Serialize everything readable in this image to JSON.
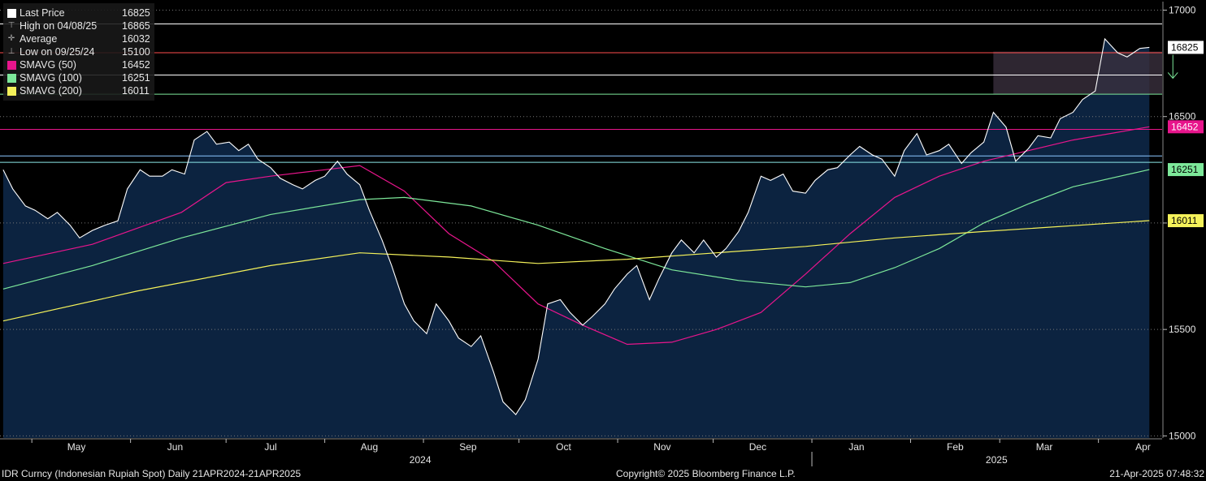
{
  "chart_data": {
    "type": "area",
    "title": "",
    "x_range": [
      "2024-04-21",
      "2025-04-21"
    ],
    "ylim": [
      14990,
      17040
    ],
    "y_ticks": [
      15000,
      15500,
      16000,
      16500,
      17000
    ],
    "y_tick_labels": [
      "15000",
      "15500",
      "16000",
      "16500",
      "17000"
    ],
    "month_labels": [
      {
        "label": "May",
        "date": "2024-05-15"
      },
      {
        "label": "Jun",
        "date": "2024-06-15"
      },
      {
        "label": "Jul",
        "date": "2024-07-15"
      },
      {
        "label": "Aug",
        "date": "2024-08-15"
      },
      {
        "label": "Sep",
        "date": "2024-09-15"
      },
      {
        "label": "Oct",
        "date": "2024-10-15"
      },
      {
        "label": "Nov",
        "date": "2024-11-15"
      },
      {
        "label": "Dec",
        "date": "2024-12-15"
      },
      {
        "label": "Jan",
        "date": "2025-01-15"
      },
      {
        "label": "Feb",
        "date": "2025-02-15"
      },
      {
        "label": "Mar",
        "date": "2025-03-15"
      },
      {
        "label": "Apr",
        "date": "2025-04-15"
      }
    ],
    "year_labels": [
      {
        "label": "2024",
        "date": "2024-08-31"
      },
      {
        "label": "2025",
        "date": "2025-02-28"
      }
    ],
    "year_divider": "2025-01-01",
    "grid": "horizontal",
    "legend_position": "top-left",
    "price_series": {
      "name": "Last Price",
      "color": "#ffffff",
      "fill": "#0c2340",
      "points": [
        [
          "2024-04-22",
          16250
        ],
        [
          "2024-04-25",
          16160
        ],
        [
          "2024-04-29",
          16080
        ],
        [
          "2024-05-02",
          16060
        ],
        [
          "2024-05-06",
          16020
        ],
        [
          "2024-05-09",
          16050
        ],
        [
          "2024-05-13",
          15990
        ],
        [
          "2024-05-16",
          15930
        ],
        [
          "2024-05-20",
          15965
        ],
        [
          "2024-05-24",
          15990
        ],
        [
          "2024-05-28",
          16010
        ],
        [
          "2024-05-31",
          16160
        ],
        [
          "2024-06-04",
          16250
        ],
        [
          "2024-06-07",
          16220
        ],
        [
          "2024-06-11",
          16220
        ],
        [
          "2024-06-14",
          16250
        ],
        [
          "2024-06-18",
          16230
        ],
        [
          "2024-06-21",
          16390
        ],
        [
          "2024-06-25",
          16430
        ],
        [
          "2024-06-28",
          16370
        ],
        [
          "2024-07-02",
          16380
        ],
        [
          "2024-07-05",
          16340
        ],
        [
          "2024-07-08",
          16370
        ],
        [
          "2024-07-11",
          16300
        ],
        [
          "2024-07-15",
          16260
        ],
        [
          "2024-07-18",
          16210
        ],
        [
          "2024-07-22",
          16180
        ],
        [
          "2024-07-25",
          16160
        ],
        [
          "2024-07-29",
          16200
        ],
        [
          "2024-08-01",
          16220
        ],
        [
          "2024-08-05",
          16290
        ],
        [
          "2024-08-08",
          16230
        ],
        [
          "2024-08-12",
          16180
        ],
        [
          "2024-08-15",
          16060
        ],
        [
          "2024-08-19",
          15920
        ],
        [
          "2024-08-22",
          15800
        ],
        [
          "2024-08-26",
          15620
        ],
        [
          "2024-08-29",
          15540
        ],
        [
          "2024-09-02",
          15480
        ],
        [
          "2024-09-05",
          15620
        ],
        [
          "2024-09-09",
          15540
        ],
        [
          "2024-09-12",
          15460
        ],
        [
          "2024-09-16",
          15420
        ],
        [
          "2024-09-19",
          15470
        ],
        [
          "2024-09-23",
          15300
        ],
        [
          "2024-09-26",
          15160
        ],
        [
          "2024-09-30",
          15100
        ],
        [
          "2024-10-03",
          15170
        ],
        [
          "2024-10-07",
          15360
        ],
        [
          "2024-10-10",
          15620
        ],
        [
          "2024-10-14",
          15640
        ],
        [
          "2024-10-17",
          15580
        ],
        [
          "2024-10-21",
          15520
        ],
        [
          "2024-10-24",
          15560
        ],
        [
          "2024-10-28",
          15620
        ],
        [
          "2024-10-31",
          15690
        ],
        [
          "2024-11-04",
          15760
        ],
        [
          "2024-11-07",
          15800
        ],
        [
          "2024-11-11",
          15640
        ],
        [
          "2024-11-14",
          15740
        ],
        [
          "2024-11-18",
          15860
        ],
        [
          "2024-11-21",
          15920
        ],
        [
          "2024-11-25",
          15860
        ],
        [
          "2024-11-28",
          15920
        ],
        [
          "2024-12-02",
          15840
        ],
        [
          "2024-12-05",
          15880
        ],
        [
          "2024-12-09",
          15960
        ],
        [
          "2024-12-12",
          16050
        ],
        [
          "2024-12-16",
          16220
        ],
        [
          "2024-12-19",
          16200
        ],
        [
          "2024-12-23",
          16230
        ],
        [
          "2024-12-26",
          16150
        ],
        [
          "2024-12-30",
          16140
        ],
        [
          "2025-01-02",
          16200
        ],
        [
          "2025-01-06",
          16250
        ],
        [
          "2025-01-09",
          16260
        ],
        [
          "2025-01-13",
          16320
        ],
        [
          "2025-01-16",
          16360
        ],
        [
          "2025-01-20",
          16320
        ],
        [
          "2025-01-23",
          16300
        ],
        [
          "2025-01-27",
          16220
        ],
        [
          "2025-01-30",
          16340
        ],
        [
          "2025-02-03",
          16420
        ],
        [
          "2025-02-06",
          16320
        ],
        [
          "2025-02-10",
          16340
        ],
        [
          "2025-02-13",
          16370
        ],
        [
          "2025-02-17",
          16280
        ],
        [
          "2025-02-20",
          16330
        ],
        [
          "2025-02-24",
          16380
        ],
        [
          "2025-02-27",
          16520
        ],
        [
          "2025-03-03",
          16450
        ],
        [
          "2025-03-06",
          16290
        ],
        [
          "2025-03-10",
          16350
        ],
        [
          "2025-03-13",
          16410
        ],
        [
          "2025-03-17",
          16400
        ],
        [
          "2025-03-20",
          16490
        ],
        [
          "2025-03-24",
          16520
        ],
        [
          "2025-03-27",
          16580
        ],
        [
          "2025-03-31",
          16620
        ],
        [
          "2025-04-03",
          16865
        ],
        [
          "2025-04-07",
          16800
        ],
        [
          "2025-04-10",
          16780
        ],
        [
          "2025-04-14",
          16820
        ],
        [
          "2025-04-17",
          16825
        ]
      ]
    },
    "sma_series": [
      {
        "name": "SMAVG (50)",
        "value": 16452,
        "color": "#e8158c",
        "points": [
          [
            "2024-04-22",
            15810
          ],
          [
            "2024-05-20",
            15900
          ],
          [
            "2024-06-17",
            16050
          ],
          [
            "2024-07-01",
            16190
          ],
          [
            "2024-07-15",
            16220
          ],
          [
            "2024-08-01",
            16250
          ],
          [
            "2024-08-12",
            16270
          ],
          [
            "2024-08-26",
            16150
          ],
          [
            "2024-09-09",
            15950
          ],
          [
            "2024-09-23",
            15820
          ],
          [
            "2024-10-07",
            15620
          ],
          [
            "2024-10-21",
            15520
          ],
          [
            "2024-11-04",
            15430
          ],
          [
            "2024-11-18",
            15440
          ],
          [
            "2024-12-02",
            15500
          ],
          [
            "2024-12-16",
            15580
          ],
          [
            "2024-12-30",
            15760
          ],
          [
            "2025-01-13",
            15950
          ],
          [
            "2025-01-27",
            16120
          ],
          [
            "2025-02-10",
            16220
          ],
          [
            "2025-02-24",
            16290
          ],
          [
            "2025-03-10",
            16340
          ],
          [
            "2025-03-24",
            16390
          ],
          [
            "2025-04-17",
            16452
          ]
        ]
      },
      {
        "name": "SMAVG (100)",
        "value": 16251,
        "color": "#7de89a",
        "points": [
          [
            "2024-04-22",
            15690
          ],
          [
            "2024-05-20",
            15800
          ],
          [
            "2024-06-17",
            15930
          ],
          [
            "2024-07-15",
            16040
          ],
          [
            "2024-08-12",
            16110
          ],
          [
            "2024-08-26",
            16120
          ],
          [
            "2024-09-16",
            16080
          ],
          [
            "2024-10-07",
            15990
          ],
          [
            "2024-10-28",
            15880
          ],
          [
            "2024-11-18",
            15780
          ],
          [
            "2024-12-09",
            15730
          ],
          [
            "2024-12-30",
            15700
          ],
          [
            "2025-01-13",
            15720
          ],
          [
            "2025-01-27",
            15790
          ],
          [
            "2025-02-10",
            15880
          ],
          [
            "2025-02-24",
            16000
          ],
          [
            "2025-03-10",
            16090
          ],
          [
            "2025-03-24",
            16170
          ],
          [
            "2025-04-17",
            16251
          ]
        ]
      },
      {
        "name": "SMAVG (200)",
        "value": 16011,
        "color": "#f5f25a",
        "points": [
          [
            "2024-04-22",
            15540
          ],
          [
            "2024-06-03",
            15680
          ],
          [
            "2024-07-15",
            15800
          ],
          [
            "2024-08-12",
            15860
          ],
          [
            "2024-09-09",
            15840
          ],
          [
            "2024-10-07",
            15810
          ],
          [
            "2024-11-04",
            15830
          ],
          [
            "2024-12-02",
            15860
          ],
          [
            "2024-12-30",
            15890
          ],
          [
            "2025-01-27",
            15930
          ],
          [
            "2025-02-24",
            15960
          ],
          [
            "2025-04-17",
            16011
          ]
        ]
      }
    ],
    "horizontal_lines": [
      {
        "value": 16935,
        "color": "#ffffff"
      },
      {
        "value": 16800,
        "color": "#ff4d4d"
      },
      {
        "value": 16695,
        "color": "#ffffff"
      },
      {
        "value": 16605,
        "color": "#7de89a"
      },
      {
        "value": 16440,
        "color": "#e8158c"
      },
      {
        "value": 16315,
        "color": "#8cc8ff"
      },
      {
        "value": 16285,
        "color": "#8ce8e8"
      }
    ],
    "shaded_box": {
      "from": "2025-02-27",
      "to": "2025-04-21",
      "y0": 16605,
      "y1": 16805,
      "color": "#3a2f3d"
    },
    "arrow": {
      "date": "2025-04-18",
      "y_from": 16790,
      "y_to": 16680,
      "color": "#7de89a"
    },
    "right_labels": [
      {
        "text": "16825",
        "value": 16825,
        "bg": "#ffffff",
        "fg": "#000000"
      },
      {
        "text": "16452",
        "value": 16452,
        "bg": "#e8158c",
        "fg": "#ffffff"
      },
      {
        "text": "16251",
        "value": 16251,
        "bg": "#7de89a",
        "fg": "#000000"
      },
      {
        "text": "16011",
        "value": 16011,
        "bg": "#f5f25a",
        "fg": "#000000"
      }
    ]
  },
  "legend": {
    "items": [
      {
        "label": "Last Price",
        "value": "16825",
        "symbol": "white-square-icon",
        "color": "#ffffff"
      },
      {
        "label": "High on 04/08/25",
        "value": "16865",
        "symbol": "high-marker-icon",
        "color": "#aaaaaa"
      },
      {
        "label": "Average",
        "value": "16032",
        "symbol": "average-marker-icon",
        "color": "#aaaaaa"
      },
      {
        "label": "Low on 09/25/24",
        "value": "15100",
        "symbol": "low-marker-icon",
        "color": "#aaaaaa"
      },
      {
        "label": "SMAVG (50)",
        "value": "16452",
        "symbol": "magenta-square-icon",
        "color": "#e8158c"
      },
      {
        "label": "SMAVG (100)",
        "value": "16251",
        "symbol": "green-square-icon",
        "color": "#7de89a"
      },
      {
        "label": "SMAVG (200)",
        "value": "16011",
        "symbol": "yellow-square-icon",
        "color": "#f5f25a"
      }
    ]
  },
  "footer": {
    "left": "IDR Curncy (Indonesian Rupiah Spot)  Daily 21APR2024-21APR2025",
    "center": "Copyright© 2025 Bloomberg Finance L.P.",
    "right": "21-Apr-2025 07:48:32"
  }
}
